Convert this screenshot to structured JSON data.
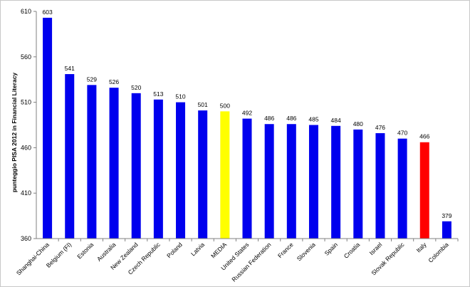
{
  "chart_data": {
    "type": "bar",
    "title": "",
    "xlabel": "",
    "ylabel": "punteggio PISA 2012 in Financial Literacy",
    "ylim": [
      360,
      610
    ],
    "yticks": [
      360,
      410,
      460,
      510,
      560,
      610
    ],
    "grid": false,
    "legend": "none",
    "categories": [
      "Shanghai-China",
      "Belgium (Fl)",
      "Estonia",
      "Australia",
      "New Zealand",
      "Czech Republic",
      "Poland",
      "Latvia",
      "MEDIA",
      "United States",
      "Russian Federation",
      "France",
      "Slovenia",
      "Spain",
      "Croatia",
      "Israel",
      "Slovak Republic",
      "Italy",
      "Colombia"
    ],
    "values": [
      603,
      541,
      529,
      526,
      520,
      513,
      510,
      501,
      500,
      492,
      486,
      486,
      485,
      484,
      480,
      476,
      470,
      466,
      379
    ],
    "colors": {
      "default": "#0000ee",
      "MEDIA": "#ffff00",
      "Italy": "#ff0000"
    }
  }
}
